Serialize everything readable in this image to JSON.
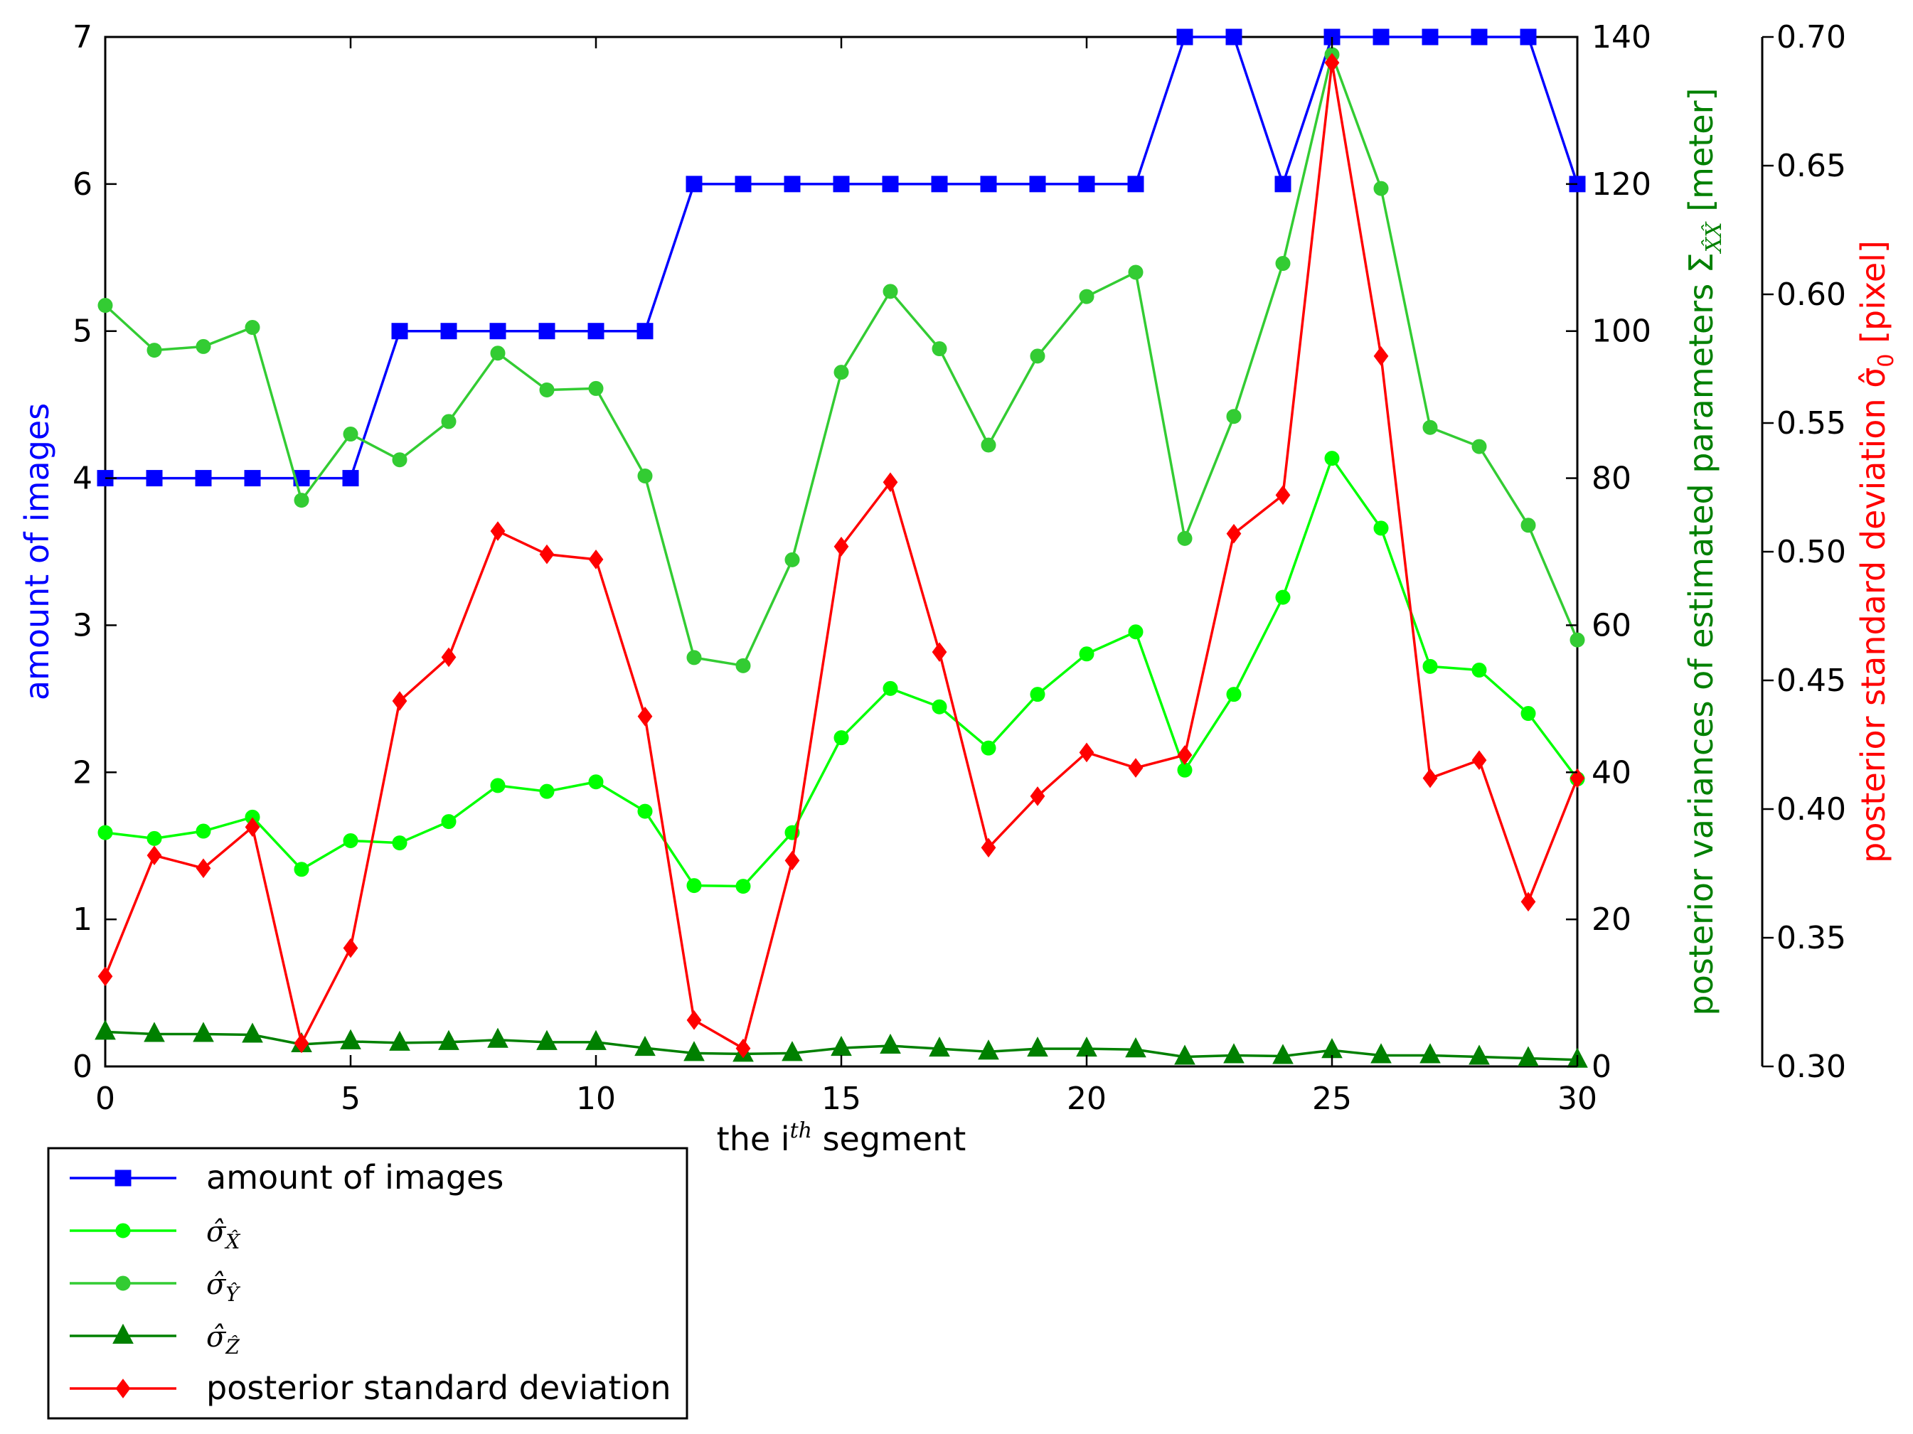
{
  "chart_data": {
    "type": "line",
    "xlabel": "the i",
    "xlabel_sup": "th",
    "xlabel_tail": " segment",
    "x": [
      0,
      1,
      2,
      3,
      4,
      5,
      6,
      7,
      8,
      9,
      10,
      11,
      12,
      13,
      14,
      15,
      16,
      17,
      18,
      19,
      20,
      21,
      22,
      23,
      24,
      25,
      26,
      27,
      28,
      29,
      30
    ],
    "xlim": [
      0,
      30
    ],
    "x_ticks": [
      0,
      5,
      10,
      15,
      20,
      25,
      30
    ],
    "axes": {
      "left": {
        "label": "amount of images",
        "color": "#0000ff",
        "ylim": [
          0,
          7
        ],
        "ticks": [
          0,
          1,
          2,
          3,
          4,
          5,
          6,
          7
        ]
      },
      "right1": {
        "label": "posterior variances of estimated parameters Σ",
        "label_sub": "X̂X̂",
        "label_tail": " [meter]",
        "color": "#008000",
        "ylim": [
          0,
          140
        ],
        "ticks": [
          0,
          20,
          40,
          60,
          80,
          100,
          120,
          140
        ]
      },
      "right2": {
        "label": "posterior standard deviation σ̂",
        "label_sub": "0",
        "label_tail": " [pixel]",
        "color": "#ff0000",
        "ylim": [
          0.3,
          0.7
        ],
        "ticks": [
          "0.30",
          "0.35",
          "0.40",
          "0.45",
          "0.50",
          "0.55",
          "0.60",
          "0.65",
          "0.70"
        ]
      }
    },
    "series": [
      {
        "name": "amount of images",
        "axis": "left",
        "color": "#0000ff",
        "marker": "square",
        "values": [
          4,
          4,
          4,
          4,
          4,
          4,
          5,
          5,
          5,
          5,
          5,
          5,
          6,
          6,
          6,
          6,
          6,
          6,
          6,
          6,
          6,
          6,
          7,
          7,
          6,
          7,
          7,
          7,
          7,
          7,
          6
        ]
      },
      {
        "name": "σ̂",
        "name_sub": "X̂",
        "axis": "right1",
        "color": "#00ff00",
        "marker": "circle",
        "values": [
          31.8,
          31.0,
          32.0,
          33.9,
          26.8,
          30.7,
          30.4,
          33.3,
          38.2,
          37.4,
          38.7,
          34.7,
          24.6,
          24.5,
          31.8,
          44.7,
          51.4,
          48.9,
          43.3,
          50.6,
          56.1,
          59.1,
          40.3,
          50.6,
          63.8,
          82.7,
          73.2,
          54.4,
          53.9,
          48.0,
          39.1
        ]
      },
      {
        "name": "σ̂",
        "name_sub": "Ŷ",
        "axis": "right1",
        "color": "#33cc33",
        "marker": "circle",
        "values": [
          103.5,
          97.4,
          97.9,
          100.5,
          77.0,
          86.0,
          82.5,
          87.7,
          97.0,
          92.0,
          92.2,
          80.3,
          55.6,
          54.5,
          68.9,
          94.4,
          105.4,
          97.6,
          84.5,
          96.6,
          104.7,
          108.0,
          71.8,
          88.4,
          109.2,
          137.6,
          119.4,
          86.9,
          84.3,
          73.6,
          58.0
        ]
      },
      {
        "name": "σ̂",
        "name_sub": "Ẑ",
        "axis": "right1",
        "color": "#008000",
        "marker": "triangle",
        "values": [
          4.7,
          4.4,
          4.4,
          4.3,
          3.0,
          3.4,
          3.2,
          3.3,
          3.6,
          3.3,
          3.3,
          2.5,
          1.8,
          1.7,
          1.8,
          2.5,
          2.8,
          2.4,
          2.0,
          2.4,
          2.4,
          2.3,
          1.3,
          1.5,
          1.4,
          2.2,
          1.5,
          1.5,
          1.3,
          1.1,
          0.9
        ]
      },
      {
        "name": "posterior standard deviation",
        "axis": "right2",
        "color": "#ff0000",
        "marker": "diamond",
        "values": [
          0.335,
          0.382,
          0.377,
          0.393,
          0.309,
          0.346,
          0.442,
          0.459,
          0.508,
          0.499,
          0.497,
          0.436,
          0.318,
          0.307,
          0.38,
          0.502,
          0.527,
          0.461,
          0.385,
          0.405,
          0.422,
          0.416,
          0.421,
          0.507,
          0.522,
          0.69,
          0.576,
          0.412,
          0.419,
          0.364,
          0.412
        ]
      }
    ],
    "legend": {
      "placement": "below-left"
    }
  }
}
